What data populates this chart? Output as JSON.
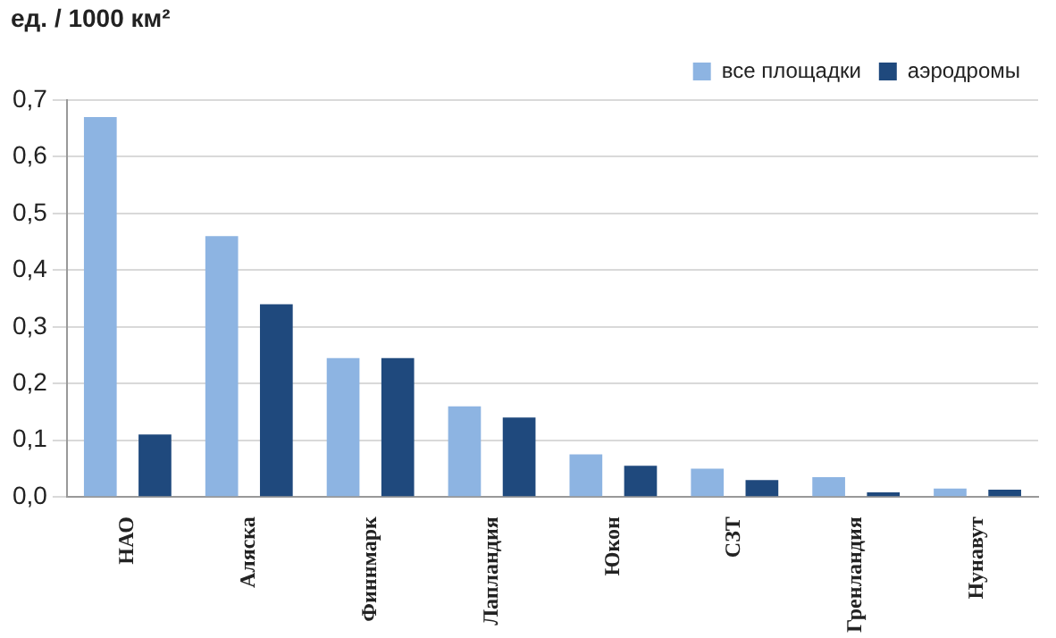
{
  "chart_data": {
    "type": "bar",
    "ylabel": "ед. / 1000 км²",
    "categories": [
      "НАО",
      "Аляска",
      "Финнмарк",
      "Лапландия",
      "Юкон",
      "СЗТ",
      "Гренландия",
      "Нунавут"
    ],
    "series": [
      {
        "name": "все площадки",
        "color": "#8db4e2",
        "values": [
          0.67,
          0.46,
          0.245,
          0.16,
          0.075,
          0.05,
          0.035,
          0.015
        ]
      },
      {
        "name": "аэродромы",
        "color": "#1f497d",
        "values": [
          0.11,
          0.34,
          0.245,
          0.14,
          0.055,
          0.03,
          0.008,
          0.013
        ]
      }
    ],
    "ylim": [
      0,
      0.7
    ],
    "yticks": [
      {
        "value": 0,
        "label": "0,0"
      },
      {
        "value": 0.1,
        "label": "0,1"
      },
      {
        "value": 0.2,
        "label": "0,2"
      },
      {
        "value": 0.3,
        "label": "0,3"
      },
      {
        "value": 0.4,
        "label": "0,4"
      },
      {
        "value": 0.5,
        "label": "0,5"
      },
      {
        "value": 0.6,
        "label": "0,6"
      },
      {
        "value": 0.7,
        "label": "0,7"
      }
    ],
    "grid": "y",
    "legend": "top right"
  }
}
